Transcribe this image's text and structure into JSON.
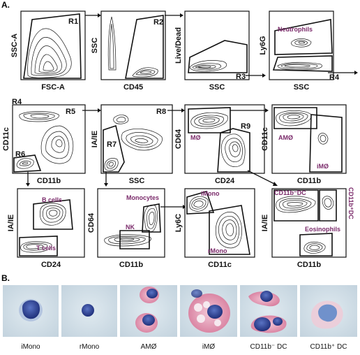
{
  "panel_a": {
    "label": "A.",
    "plots": [
      {
        "id": "p1",
        "xlabel": "FSC-A",
        "ylabel": "SSC-A",
        "gates": [
          "R1"
        ],
        "pops": []
      },
      {
        "id": "p2",
        "xlabel": "CD45",
        "ylabel": "SSC",
        "gates": [
          "R2"
        ],
        "pops": []
      },
      {
        "id": "p3",
        "xlabel": "SSC",
        "ylabel": "Live/Dead",
        "gates": [
          "R3"
        ],
        "pops": []
      },
      {
        "id": "p4",
        "xlabel": "SSC",
        "ylabel": "Ly6G",
        "gates": [
          "R4"
        ],
        "pops": [
          "Neutrophils"
        ]
      },
      {
        "id": "p5",
        "xlabel": "CD11b",
        "ylabel": "CD11c",
        "gates": [
          "R4",
          "R5",
          "R6"
        ],
        "pops": []
      },
      {
        "id": "p6",
        "xlabel": "SSC",
        "ylabel": "IA/IE",
        "gates": [
          "R7",
          "R8"
        ],
        "pops": []
      },
      {
        "id": "p7",
        "xlabel": "CD24",
        "ylabel": "CD64",
        "gates": [
          "R9"
        ],
        "pops": [
          "MØ"
        ]
      },
      {
        "id": "p8",
        "xlabel": "CD11b",
        "ylabel": "CD11c",
        "gates": [],
        "pops": [
          "AMØ",
          "iMØ"
        ]
      },
      {
        "id": "p9",
        "xlabel": "CD24",
        "ylabel": "IA/IE",
        "gates": [],
        "pops": [
          "B cells",
          "T cells"
        ]
      },
      {
        "id": "p10",
        "xlabel": "CD11b",
        "ylabel": "CD64",
        "gates": [],
        "pops": [
          "Monocytes",
          "NK"
        ]
      },
      {
        "id": "p11",
        "xlabel": "CD11c",
        "ylabel": "Ly6C",
        "gates": [],
        "pops": [
          "iMono",
          "rMono"
        ]
      },
      {
        "id": "p12",
        "xlabel": "CD11b",
        "ylabel": "IA/IE",
        "gates": [],
        "pops": [
          "CD11b⁻DC",
          "CD11b⁺DC",
          "Eosinophils"
        ]
      }
    ]
  },
  "panel_b": {
    "label": "B.",
    "captions": [
      "iMono",
      "rMono",
      "AMØ",
      "iMØ",
      "CD11b⁻ DC",
      "CD11b⁺ DC"
    ]
  },
  "colors": {
    "population_label": "#7a2a6a",
    "cell_nucleus": "#2b3f8f",
    "cytoplasm_stain": "#c84a78",
    "micro_bg": "#cfdde6"
  }
}
